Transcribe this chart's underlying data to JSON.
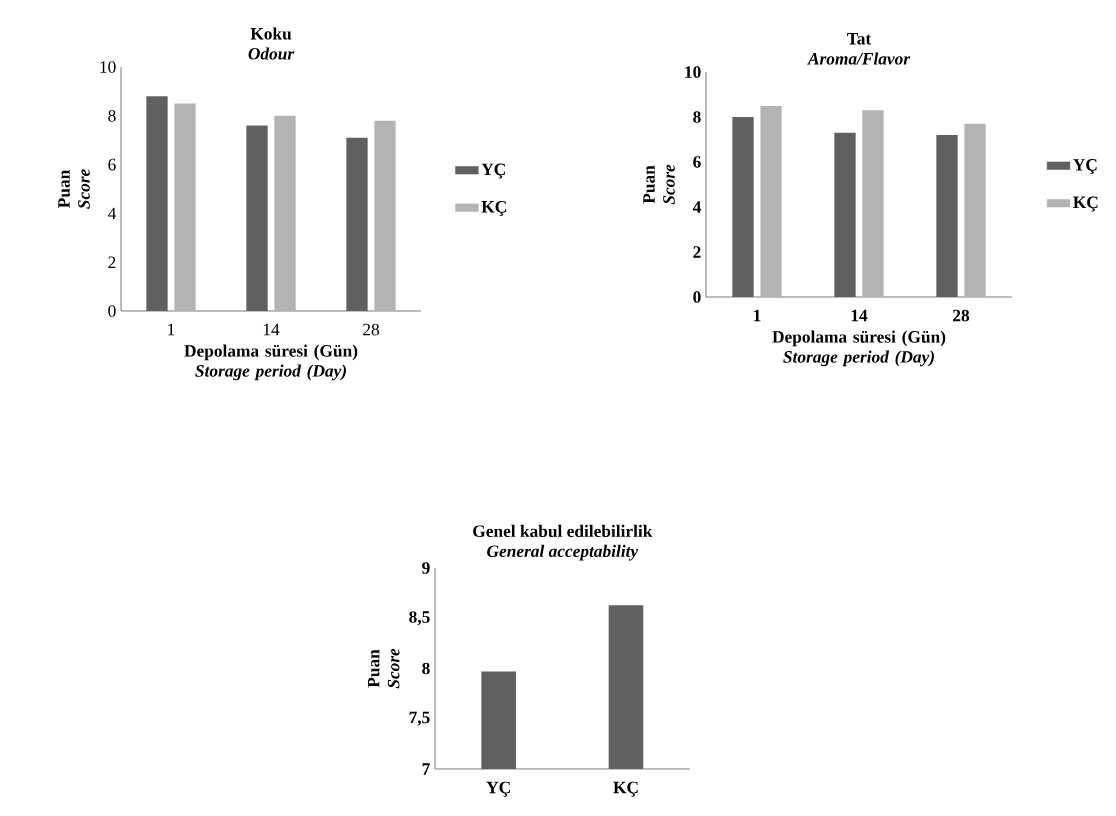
{
  "chart_data": [
    {
      "type": "bar",
      "title": "Koku",
      "subtitle": "Odour",
      "xlabel": "Depolama süresi (Gün) *Storage period (Day)*",
      "ylabel": "Puan *Score*",
      "categories": [
        "1",
        "14",
        "28"
      ],
      "series": [
        {
          "name": "YÇ",
          "color": "#606060",
          "values": [
            8.8,
            7.6,
            7.1
          ]
        },
        {
          "name": "KÇ",
          "color": "#b3b3b3",
          "values": [
            8.5,
            8.0,
            7.8
          ]
        }
      ],
      "ylim": [
        0,
        10
      ],
      "yticks": [
        0,
        2,
        4,
        6,
        8,
        10
      ],
      "legend": "right"
    },
    {
      "type": "bar",
      "title": "Tat",
      "subtitle": "Aroma/Flavor",
      "xlabel": "Depolama süresi (Gün) *Storage period (Day)*",
      "ylabel": "Puan *Score*",
      "categories": [
        "1",
        "14",
        "28"
      ],
      "series": [
        {
          "name": "YÇ",
          "color": "#606060",
          "values": [
            8.0,
            7.3,
            7.2
          ]
        },
        {
          "name": "KÇ",
          "color": "#b3b3b3",
          "values": [
            8.5,
            8.3,
            7.7
          ]
        }
      ],
      "ylim": [
        0,
        10
      ],
      "yticks": [
        0,
        2,
        4,
        6,
        8,
        10
      ],
      "legend": "right"
    },
    {
      "type": "bar",
      "title": "Genel kabul edilebilirlik",
      "subtitle": "General acceptability",
      "ylabel": "Puan *Score*",
      "categories": [
        "YÇ",
        "KÇ"
      ],
      "series": [
        {
          "color": "#606060",
          "values": [
            7.97,
            8.63
          ]
        }
      ],
      "ylim": [
        7,
        9
      ],
      "yticks": [
        7,
        {
          "value": 7.5,
          "label": "7,5"
        },
        8,
        {
          "value": 8.5,
          "label": "8,5"
        },
        9
      ]
    }
  ]
}
